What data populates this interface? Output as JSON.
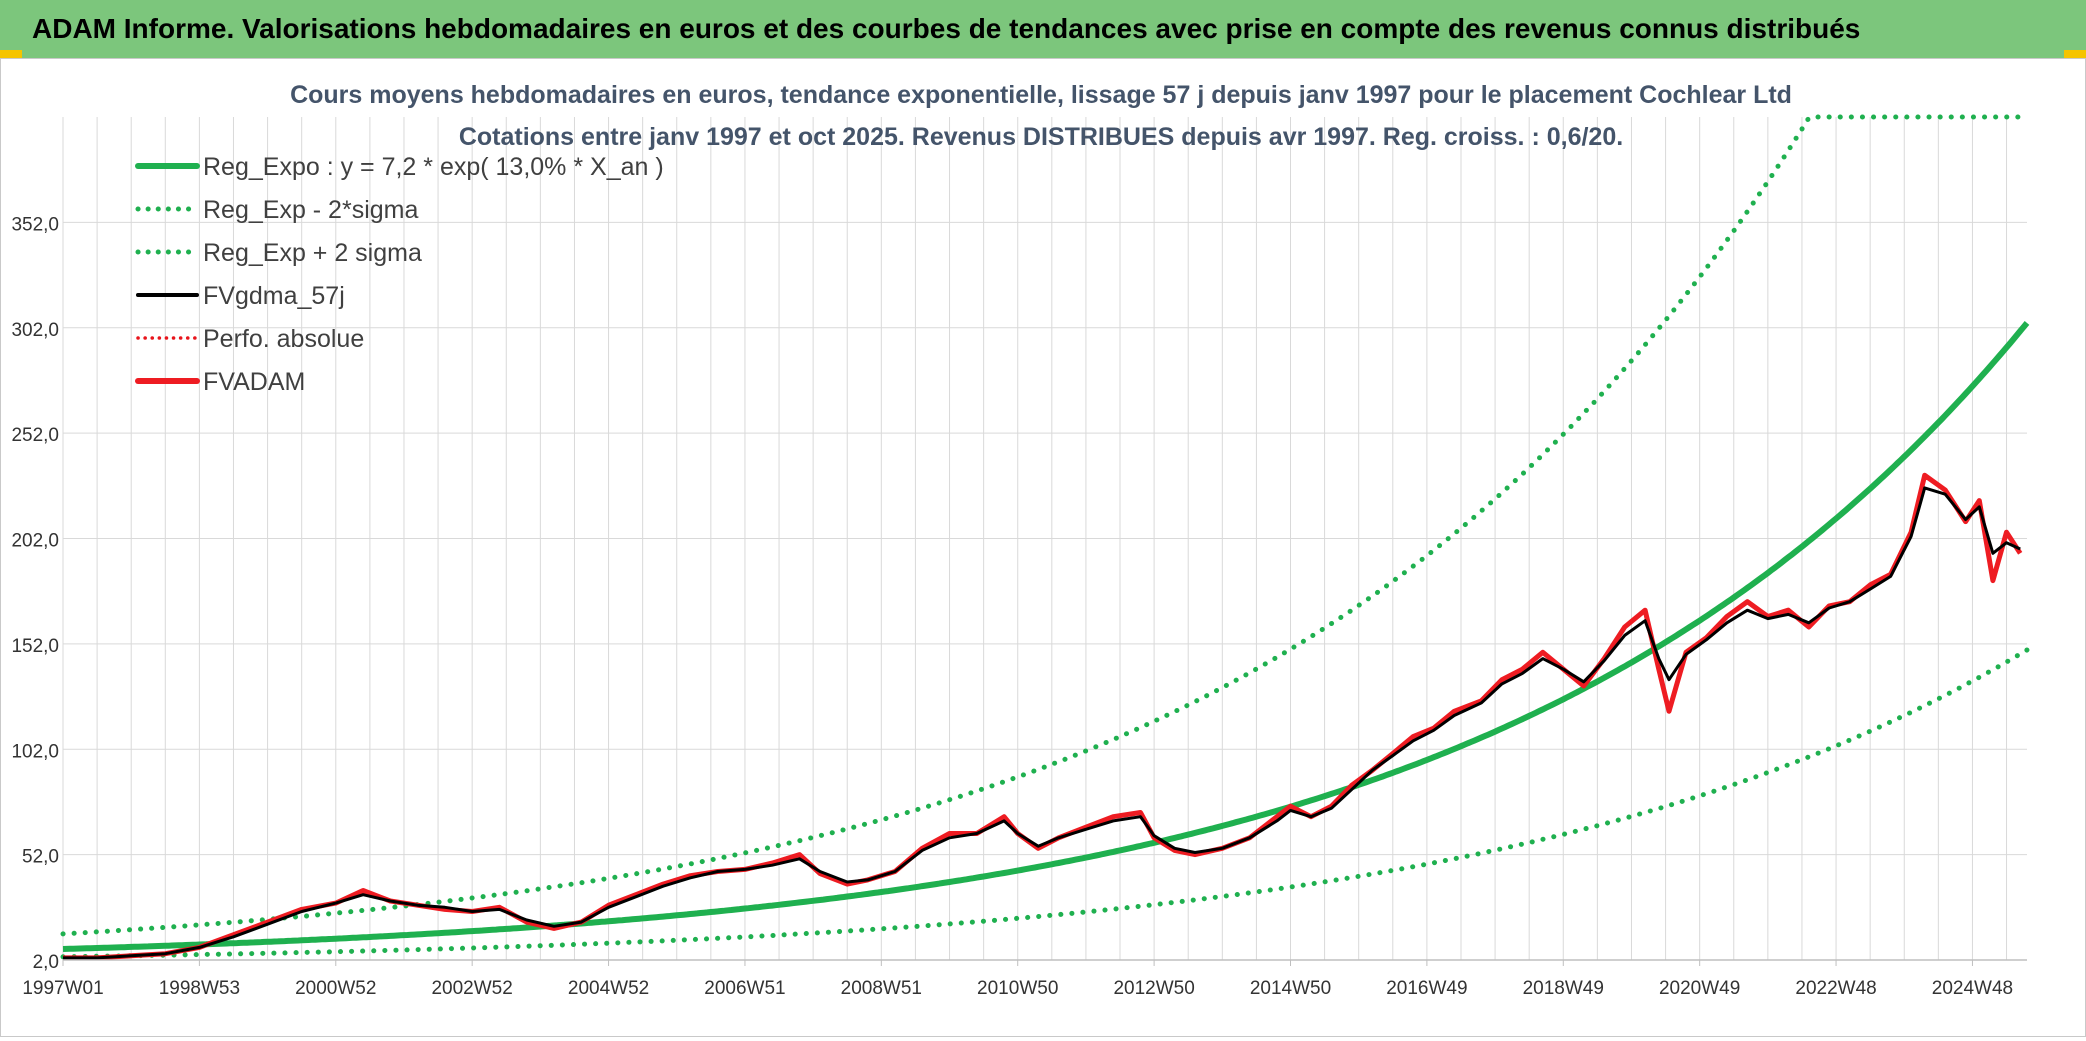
{
  "banner": {
    "title": "ADAM Informe. Valorisations hebdomadaires en euros et des courbes de tendances avec prise en compte des revenus connus distribués"
  },
  "colors": {
    "banner_bg": "#7cc67c",
    "reg_expo": "#1fb04f",
    "sigma_lines": "#1fb04f",
    "fvgdma": "#000000",
    "perfo": "#e8141b",
    "fvadam": "#ee1c22",
    "grid": "#d9d9d9",
    "axis_text": "#333333",
    "title_text": "#44546a"
  },
  "chart_data": {
    "type": "line",
    "title": "Cours moyens hebdomadaires en euros, tendance exponentielle, lissage 57 j depuis janv 1997 pour le placement Cochlear Ltd",
    "subtitle": "Cotations entre janv 1997 et oct 2025. Revenus DISTRIBUES depuis avr 1997. Reg. croiss. : 0,6/20.",
    "xlabel": "",
    "ylabel": "",
    "x_range": [
      1997.0,
      2025.8
    ],
    "ylim": [
      2,
      402
    ],
    "y_ticks": [
      "2,0",
      "52,0",
      "102,0",
      "152,0",
      "202,0",
      "252,0",
      "302,0",
      "352,0"
    ],
    "y_tick_values": [
      2,
      52,
      102,
      152,
      202,
      252,
      302,
      352
    ],
    "x_tick_labels": [
      "1997W01",
      "1998W53",
      "2000W52",
      "2002W52",
      "2004W52",
      "2006W51",
      "2008W51",
      "2010W50",
      "2012W50",
      "2014W50",
      "2016W49",
      "2018W49",
      "2020W49",
      "2022W48",
      "2024W48"
    ],
    "x_tick_values": [
      1997.0,
      1999.0,
      2001.0,
      2003.0,
      2005.0,
      2007.0,
      2009.0,
      2011.0,
      2013.0,
      2015.0,
      2017.0,
      2019.0,
      2021.0,
      2023.0,
      2025.0
    ],
    "grid": true,
    "legend_position": "top-left",
    "legend": [
      {
        "key": "reg_expo",
        "label": "Reg_Expo : y = 7,2 * exp( 13,0% *  X_an )",
        "style": "solid-thick"
      },
      {
        "key": "reg_minus",
        "label": "Reg_Exp - 2*sigma",
        "style": "dotted"
      },
      {
        "key": "reg_plus",
        "label": "Reg_Exp + 2 sigma",
        "style": "dotted"
      },
      {
        "key": "fvgdma",
        "label": "FVgdma_57j",
        "style": "solid"
      },
      {
        "key": "perfo",
        "label": "Perfo. absolue",
        "style": "dotted-red"
      },
      {
        "key": "fvadam",
        "label": "FVADAM",
        "style": "solid-red"
      }
    ],
    "regression": {
      "a": 7.2,
      "rate": 0.13,
      "start_year": 1997.0,
      "lower_factor": 0.49,
      "upper_factor": 2.0,
      "upper_cap": 402
    },
    "series": [
      {
        "name": "FVADAM",
        "x": [
          1997.0,
          1997.5,
          1998.0,
          1998.5,
          1999.0,
          1999.5,
          2000.0,
          2000.5,
          2001.0,
          2001.4,
          2001.8,
          2002.2,
          2002.6,
          2003.0,
          2003.4,
          2003.8,
          2004.2,
          2004.6,
          2005.0,
          2005.4,
          2005.8,
          2006.2,
          2006.6,
          2007.0,
          2007.4,
          2007.8,
          2008.1,
          2008.5,
          2008.8,
          2009.2,
          2009.6,
          2010.0,
          2010.4,
          2010.8,
          2011.0,
          2011.3,
          2011.6,
          2012.0,
          2012.4,
          2012.8,
          2013.0,
          2013.3,
          2013.6,
          2014.0,
          2014.4,
          2014.8,
          2015.0,
          2015.3,
          2015.6,
          2015.9,
          2016.2,
          2016.5,
          2016.8,
          2017.1,
          2017.4,
          2017.8,
          2018.1,
          2018.4,
          2018.7,
          2019.0,
          2019.3,
          2019.6,
          2019.9,
          2020.2,
          2020.4,
          2020.55,
          2020.8,
          2021.1,
          2021.4,
          2021.7,
          2022.0,
          2022.3,
          2022.6,
          2022.9,
          2023.2,
          2023.5,
          2023.8,
          2024.1,
          2024.3,
          2024.6,
          2024.9,
          2025.1,
          2025.3,
          2025.5,
          2025.7
        ],
        "values": [
          3,
          3,
          4,
          5,
          8,
          14,
          20,
          26,
          29,
          35,
          30,
          28,
          26,
          25,
          27,
          20,
          17,
          20,
          28,
          33,
          38,
          42,
          44,
          45,
          48,
          52,
          43,
          38,
          40,
          44,
          55,
          62,
          62,
          70,
          62,
          55,
          60,
          65,
          70,
          72,
          60,
          54,
          52,
          55,
          60,
          70,
          75,
          70,
          75,
          85,
          92,
          100,
          108,
          112,
          120,
          125,
          135,
          140,
          148,
          140,
          132,
          145,
          160,
          168,
          140,
          120,
          148,
          155,
          165,
          172,
          165,
          168,
          160,
          170,
          172,
          180,
          185,
          205,
          232,
          225,
          210,
          220,
          182,
          205,
          195
        ]
      },
      {
        "name": "FVgdma_57j",
        "x": [
          1997.0,
          1997.5,
          1998.0,
          1998.5,
          1999.0,
          1999.5,
          2000.0,
          2000.5,
          2001.0,
          2001.4,
          2001.8,
          2002.2,
          2002.6,
          2003.0,
          2003.4,
          2003.8,
          2004.2,
          2004.6,
          2005.0,
          2005.4,
          2005.8,
          2006.2,
          2006.6,
          2007.0,
          2007.4,
          2007.8,
          2008.1,
          2008.5,
          2008.8,
          2009.2,
          2009.6,
          2010.0,
          2010.4,
          2010.8,
          2011.0,
          2011.3,
          2011.6,
          2012.0,
          2012.4,
          2012.8,
          2013.0,
          2013.3,
          2013.6,
          2014.0,
          2014.4,
          2014.8,
          2015.0,
          2015.3,
          2015.6,
          2015.9,
          2016.2,
          2016.5,
          2016.8,
          2017.1,
          2017.4,
          2017.8,
          2018.1,
          2018.4,
          2018.7,
          2019.0,
          2019.3,
          2019.6,
          2019.9,
          2020.2,
          2020.4,
          2020.55,
          2020.8,
          2021.1,
          2021.4,
          2021.7,
          2022.0,
          2022.3,
          2022.6,
          2022.9,
          2023.2,
          2023.5,
          2023.8,
          2024.1,
          2024.3,
          2024.6,
          2024.9,
          2025.1,
          2025.3,
          2025.5,
          2025.7
        ],
        "values": [
          3,
          3,
          4,
          5,
          8,
          13,
          19,
          25,
          29,
          33,
          30,
          28,
          27,
          25,
          26,
          21,
          18,
          20,
          27,
          32,
          37,
          41,
          44,
          45,
          47,
          50,
          44,
          39,
          40,
          44,
          54,
          60,
          62,
          68,
          62,
          56,
          60,
          64,
          68,
          70,
          61,
          55,
          53,
          55,
          60,
          68,
          73,
          70,
          74,
          83,
          92,
          99,
          106,
          111,
          118,
          124,
          133,
          138,
          145,
          140,
          134,
          144,
          156,
          163,
          145,
          135,
          147,
          154,
          162,
          168,
          164,
          166,
          162,
          169,
          172,
          178,
          184,
          203,
          226,
          223,
          211,
          217,
          195,
          200,
          197
        ]
      }
    ]
  }
}
